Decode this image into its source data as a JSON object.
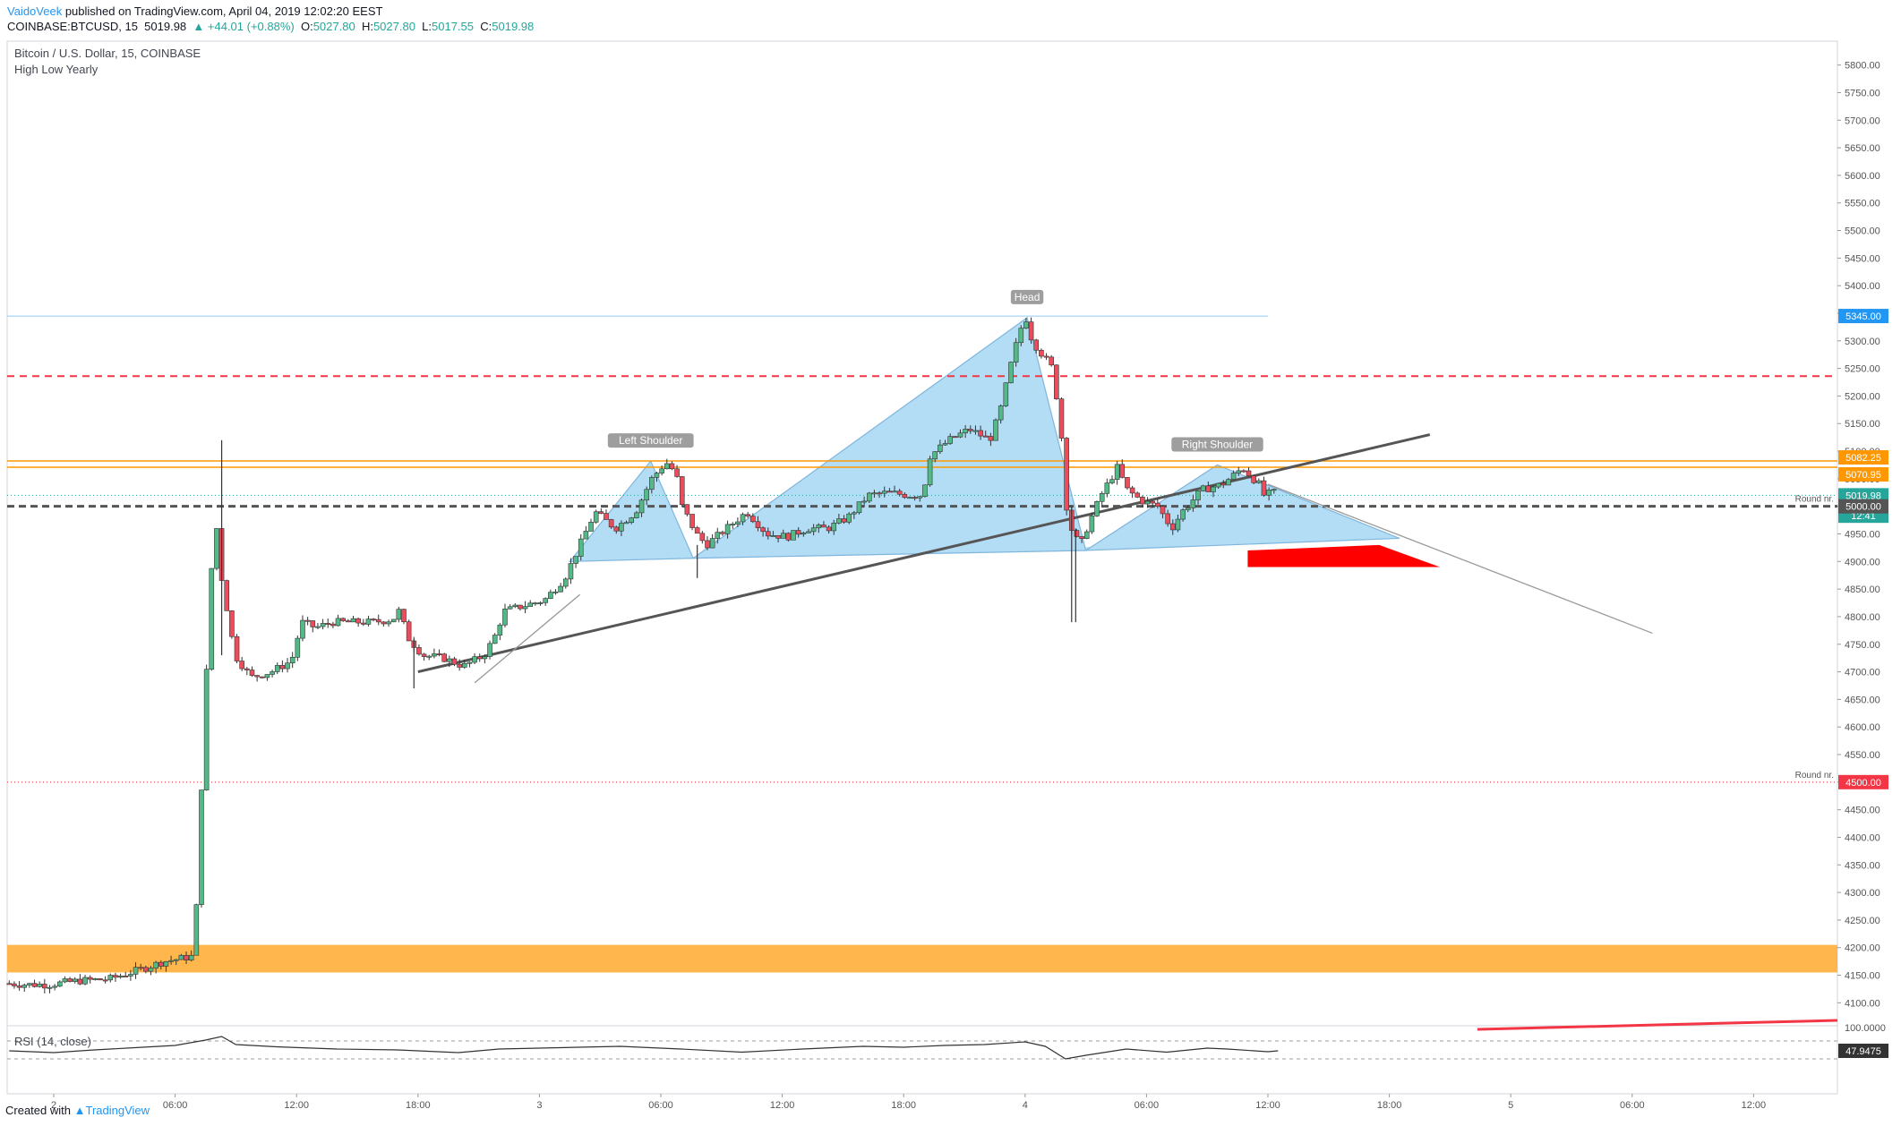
{
  "header": {
    "author": "VaidoVeek",
    "published": "published on TradingView.com, April 04, 2019 12:02:20 EEST",
    "symbol": "COINBASE:BTCUSD, 15",
    "last": "5019.98",
    "change": "▲ +44.01 (+0.88%)",
    "o_label": "O:",
    "o": "5027.80",
    "h_label": "H:",
    "h": "5027.80",
    "l_label": "L:",
    "l": "5017.55",
    "c_label": "C:",
    "c": "5019.98"
  },
  "legend": {
    "title": "Bitcoin / U.S. Dollar, 15, COINBASE",
    "indicator": "High Low Yearly",
    "rsi": "RSI (14, close)"
  },
  "footer": {
    "created_with": "Created with",
    "brand": "TradingView"
  },
  "colors": {
    "up": "#26a69a",
    "down": "#ef5350",
    "up_fill": "#53b987",
    "down_fill": "#eb4d5c",
    "pattern_fill": "#b3dcf5",
    "orange": "#ff9800",
    "orange_zone": "#ffb74d",
    "red": "#ff0000",
    "grey_line": "#555555",
    "light_blue": "#90caf9"
  },
  "chart_data": {
    "type": "candlestick",
    "title": "Bitcoin / U.S. Dollar, 15, COINBASE",
    "ylim": [
      4060,
      5840
    ],
    "y_ticks": [
      "5800.00",
      "5750.00",
      "5700.00",
      "5650.00",
      "5600.00",
      "5550.00",
      "5500.00",
      "5450.00",
      "5400.00",
      "5350.00",
      "5300.00",
      "5250.00",
      "5200.00",
      "5150.00",
      "5100.00",
      "5050.00",
      "5000.00",
      "4950.00",
      "4900.00",
      "4850.00",
      "4800.00",
      "4750.00",
      "4700.00",
      "4650.00",
      "4600.00",
      "4550.00",
      "4500.00",
      "4450.00",
      "4400.00",
      "4350.00",
      "4300.00",
      "4250.00",
      "4200.00",
      "4150.00",
      "4100.00"
    ],
    "x_ticks": [
      {
        "label": "2",
        "h": 0
      },
      {
        "label": "06:00",
        "h": 6
      },
      {
        "label": "12:00",
        "h": 12
      },
      {
        "label": "18:00",
        "h": 18
      },
      {
        "label": "3",
        "h": 24
      },
      {
        "label": "06:00",
        "h": 30
      },
      {
        "label": "12:00",
        "h": 36
      },
      {
        "label": "18:00",
        "h": 42
      },
      {
        "label": "4",
        "h": 48
      },
      {
        "label": "06:00",
        "h": 54
      },
      {
        "label": "12:00",
        "h": 60
      },
      {
        "label": "18:00",
        "h": 66
      },
      {
        "label": "5",
        "h": 72
      },
      {
        "label": "06:00",
        "h": 78
      },
      {
        "label": "12:00",
        "h": 84
      }
    ],
    "price_path": [
      [
        -2.2,
        4135
      ],
      [
        -1,
        4133
      ],
      [
        0,
        4133
      ],
      [
        1.5,
        4140
      ],
      [
        3,
        4143
      ],
      [
        4.5,
        4160
      ],
      [
        5.7,
        4175
      ],
      [
        6.5,
        4180
      ],
      [
        7.2,
        4185
      ],
      [
        7.5,
        4450
      ],
      [
        7.8,
        4700
      ],
      [
        8.2,
        5000
      ],
      [
        8.5,
        4880
      ],
      [
        9.2,
        4730
      ],
      [
        10,
        4690
      ],
      [
        11,
        4700
      ],
      [
        12,
        4720
      ],
      [
        12.5,
        4790
      ],
      [
        13.2,
        4780
      ],
      [
        14,
        4790
      ],
      [
        15,
        4790
      ],
      [
        16,
        4790
      ],
      [
        17,
        4795
      ],
      [
        17.3,
        4810
      ],
      [
        17.8,
        4760
      ],
      [
        18.5,
        4730
      ],
      [
        19.5,
        4725
      ],
      [
        20.5,
        4710
      ],
      [
        21.5,
        4730
      ],
      [
        22,
        4760
      ],
      [
        22.5,
        4810
      ],
      [
        23.5,
        4820
      ],
      [
        24.5,
        4830
      ],
      [
        25.5,
        4870
      ],
      [
        26.5,
        4950
      ],
      [
        27,
        4990
      ],
      [
        28,
        4960
      ],
      [
        29,
        4990
      ],
      [
        29.8,
        5050
      ],
      [
        30.5,
        5080
      ],
      [
        31,
        5060
      ],
      [
        31.3,
        5000
      ],
      [
        32,
        4950
      ],
      [
        32.5,
        4930
      ],
      [
        33.5,
        4960
      ],
      [
        34.5,
        4990
      ],
      [
        35.5,
        4950
      ],
      [
        36.5,
        4945
      ],
      [
        37.5,
        4960
      ],
      [
        38.5,
        4960
      ],
      [
        39.5,
        4980
      ],
      [
        40.5,
        5020
      ],
      [
        41.5,
        5025
      ],
      [
        42.5,
        5020
      ],
      [
        43.2,
        5020
      ],
      [
        43.5,
        5090
      ],
      [
        44.5,
        5120
      ],
      [
        45.5,
        5140
      ],
      [
        46.5,
        5120
      ],
      [
        47,
        5170
      ],
      [
        47.5,
        5250
      ],
      [
        48,
        5320
      ],
      [
        48.3,
        5340
      ],
      [
        48.6,
        5300
      ],
      [
        49,
        5280
      ],
      [
        49.6,
        5250
      ],
      [
        50,
        5150
      ],
      [
        50.3,
        5000
      ],
      [
        50.6,
        4950
      ],
      [
        51,
        4930
      ],
      [
        51.3,
        4960
      ],
      [
        52,
        5020
      ],
      [
        52.8,
        5070
      ],
      [
        53.3,
        5030
      ],
      [
        54,
        5010
      ],
      [
        54.8,
        5000
      ],
      [
        55.5,
        4960
      ],
      [
        56,
        4990
      ],
      [
        57,
        5030
      ],
      [
        58,
        5040
      ],
      [
        59,
        5070
      ],
      [
        59.8,
        5040
      ],
      [
        60,
        5020
      ],
      [
        60.5,
        5025
      ]
    ],
    "spikes": [
      {
        "x": 8.3,
        "high": 5120,
        "low": 4730
      },
      {
        "x": 50.3,
        "high": 5000,
        "low": 4790
      },
      {
        "x": 50.5,
        "high": 4960,
        "low": 4790
      },
      {
        "x": 17.8,
        "high": 4760,
        "low": 4670
      },
      {
        "x": 31.8,
        "high": 4930,
        "low": 4870
      }
    ],
    "patterns": {
      "left_shoulder": [
        [
          25.5,
          4900
        ],
        [
          29.5,
          5082
        ],
        [
          31.6,
          4906
        ]
      ],
      "head": [
        [
          31.6,
          4906
        ],
        [
          48.1,
          5342
        ],
        [
          51,
          4920
        ]
      ],
      "right_shoulder": [
        [
          51,
          4920
        ],
        [
          57.5,
          5075
        ],
        [
          66.5,
          4942
        ]
      ],
      "neck_fill": [
        [
          25.5,
          4900
        ],
        [
          51,
          4920
        ],
        [
          66.5,
          4942
        ]
      ],
      "pattern_labels": [
        "Left Shoulder",
        "Head",
        "Right Shoulder"
      ]
    },
    "horizontal_lines": [
      {
        "price": 5345.0,
        "label": "5345.00",
        "style": "light-blue",
        "to_h": 60
      },
      {
        "price": 5236,
        "style": "red-dash"
      },
      {
        "price": 5082.25,
        "label": "5082.25",
        "style": "orange"
      },
      {
        "price": 5070.95,
        "label": "5070.95",
        "style": "orange"
      },
      {
        "price": 5019.98,
        "label": "5019.98",
        "style": "green-dot"
      },
      {
        "price": 5000.0,
        "label": "5000.00",
        "style": "grey-dash",
        "note": "Round nr."
      },
      {
        "price": 4500.0,
        "label": "4500.00",
        "style": "red-dot",
        "note": "Round nr."
      }
    ],
    "countdown": "12:41",
    "trend_lines": [
      {
        "from": [
          18,
          4700
        ],
        "to": [
          68,
          5130
        ],
        "style": "dark"
      },
      {
        "from": [
          60,
          5040
        ],
        "to": [
          79,
          4770
        ],
        "style": "light"
      },
      {
        "from": [
          20.8,
          4680
        ],
        "to": [
          26,
          4840
        ],
        "style": "light"
      }
    ],
    "zone": {
      "from_price": 4155,
      "to_price": 4205
    },
    "red_target": [
      [
        59,
        4920
      ],
      [
        65.5,
        4930
      ],
      [
        68.5,
        4890
      ],
      [
        59,
        4890
      ]
    ],
    "rsi": {
      "ylim": [
        0,
        100
      ],
      "last": "47.9475",
      "top_label": "100.0000",
      "bands": [
        70,
        30
      ],
      "path": [
        [
          -2.2,
          48
        ],
        [
          0,
          44
        ],
        [
          2,
          50
        ],
        [
          4,
          55
        ],
        [
          6,
          60
        ],
        [
          7.5,
          72
        ],
        [
          8.3,
          80
        ],
        [
          9,
          62
        ],
        [
          11,
          57
        ],
        [
          14,
          52
        ],
        [
          17,
          50
        ],
        [
          20,
          44
        ],
        [
          22,
          52
        ],
        [
          25,
          55
        ],
        [
          28,
          58
        ],
        [
          31,
          52
        ],
        [
          34,
          45
        ],
        [
          37,
          52
        ],
        [
          40,
          58
        ],
        [
          42,
          56
        ],
        [
          44,
          60
        ],
        [
          46,
          62
        ],
        [
          48,
          68
        ],
        [
          49,
          58
        ],
        [
          50,
          30
        ],
        [
          51,
          38
        ],
        [
          53,
          52
        ],
        [
          55,
          45
        ],
        [
          57,
          54
        ],
        [
          58,
          52
        ],
        [
          60,
          46
        ],
        [
          60.5,
          48
        ]
      ]
    }
  }
}
